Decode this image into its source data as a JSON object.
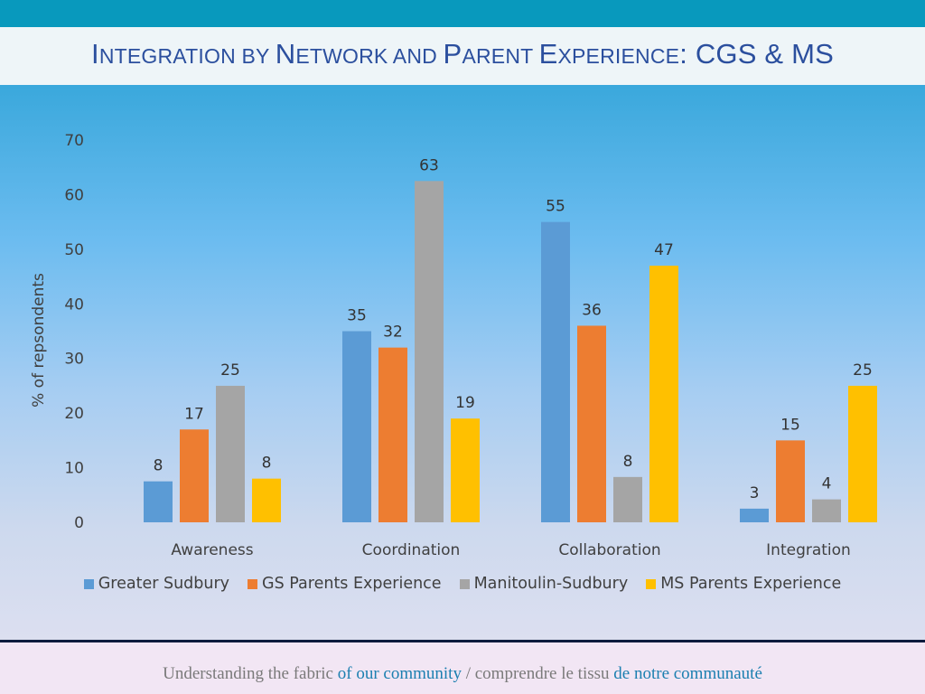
{
  "slide": {
    "title_parts": [
      {
        "text": "I",
        "small": false
      },
      {
        "text": "NTEGRATION BY ",
        "small": true
      },
      {
        "text": "N",
        "small": false
      },
      {
        "text": "ETWORK AND ",
        "small": true
      },
      {
        "text": "P",
        "small": false
      },
      {
        "text": "ARENT ",
        "small": true
      },
      {
        "text": "E",
        "small": false
      },
      {
        "text": "XPERIENCE",
        "small": true
      },
      {
        "text": ": CGS & MS",
        "small": false
      }
    ],
    "footer": {
      "part1": "Understanding the fabric ",
      "part2": "of our community",
      "part3": " / comprendre le tissu ",
      "part4": "de notre communauté"
    }
  },
  "colors": {
    "Greater Sudbury": "#5b9bd5",
    "GS Parents Experience": "#ed7d31",
    "Manitoulin-Sudbury": "#a5a5a5",
    "MS Parents Experience": "#ffc000"
  },
  "chart_data": {
    "type": "bar",
    "title": "",
    "xlabel": "",
    "ylabel": "% of repsondents",
    "ylim": [
      0,
      70
    ],
    "yticks": [
      0,
      10,
      20,
      30,
      40,
      50,
      60,
      70
    ],
    "grid": false,
    "legend_position": "bottom",
    "categories": [
      "Awareness",
      "Coordination",
      "Collaboration",
      "Integration"
    ],
    "series": [
      {
        "name": "Greater Sudbury",
        "values": [
          7.5,
          35,
          55,
          2.5
        ],
        "labels": [
          "8",
          "35",
          "55",
          "3"
        ]
      },
      {
        "name": "GS Parents Experience",
        "values": [
          17,
          32,
          36,
          15
        ],
        "labels": [
          "17",
          "32",
          "36",
          "15"
        ]
      },
      {
        "name": "Manitoulin-Sudbury",
        "values": [
          25,
          62.5,
          8.3,
          4.2
        ],
        "labels": [
          "25",
          "63",
          "8",
          "4"
        ]
      },
      {
        "name": "MS Parents Experience",
        "values": [
          8,
          19,
          47,
          25
        ],
        "labels": [
          "8",
          "19",
          "47",
          "25"
        ]
      }
    ]
  }
}
